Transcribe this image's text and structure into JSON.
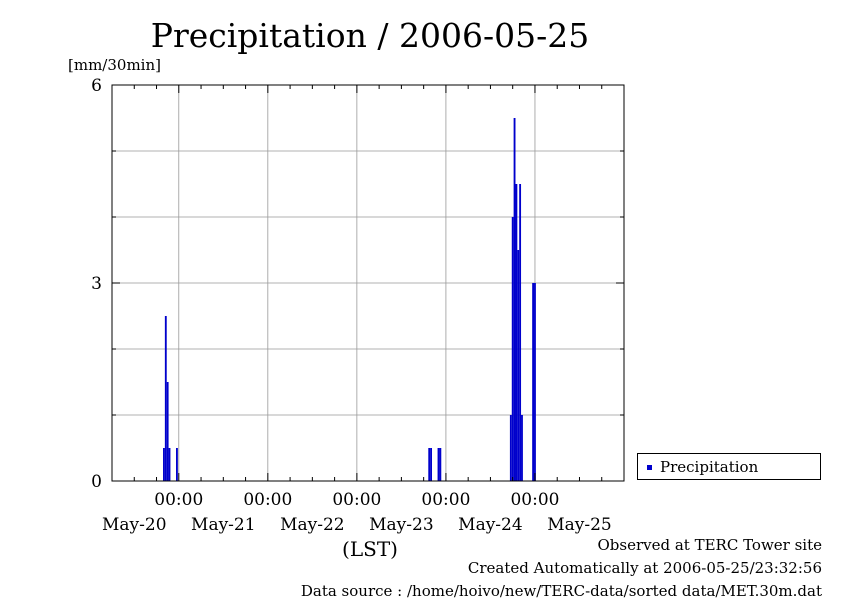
{
  "chart_data": {
    "type": "bar",
    "title": "Precipitation / 2006-05-25",
    "ylabel": "[mm/30min]",
    "xlabel": "(LST)",
    "ylim": [
      0,
      6
    ],
    "y_ticks": [
      0,
      3,
      6
    ],
    "grid": true,
    "legend_position": "bottom-right, outside",
    "x_range": [
      "2006-05-19 06:00",
      "2006-05-25 00:00"
    ],
    "x_time_labels": [
      "00:00",
      "00:00",
      "00:00",
      "00:00",
      "00:00"
    ],
    "x_time_label_at": [
      "2006-05-20 00:00",
      "2006-05-21 00:00",
      "2006-05-22 00:00",
      "2006-05-23 00:00",
      "2006-05-24 00:00"
    ],
    "x_date_labels": [
      "May-20",
      "May-21",
      "May-22",
      "May-23",
      "May-24",
      "May-25"
    ],
    "x_date_label_at": [
      "2006-05-19 12:00",
      "2006-05-20 12:00",
      "2006-05-21 12:00",
      "2006-05-22 12:00",
      "2006-05-23 12:00",
      "2006-05-24 12:00"
    ],
    "series": [
      {
        "name": "Precipitation",
        "color": "#0000cc",
        "points": [
          {
            "x": "2006-05-19 20:00",
            "y": 0.5
          },
          {
            "x": "2006-05-19 20:30",
            "y": 2.5
          },
          {
            "x": "2006-05-19 21:00",
            "y": 1.5
          },
          {
            "x": "2006-05-19 21:30",
            "y": 0.5
          },
          {
            "x": "2006-05-19 23:30",
            "y": 0.5
          },
          {
            "x": "2006-05-22 19:30",
            "y": 0.5
          },
          {
            "x": "2006-05-22 20:00",
            "y": 0.5
          },
          {
            "x": "2006-05-22 22:00",
            "y": 0.5
          },
          {
            "x": "2006-05-22 22:30",
            "y": 0.5
          },
          {
            "x": "2006-05-23 17:30",
            "y": 1.0
          },
          {
            "x": "2006-05-23 18:00",
            "y": 4.0
          },
          {
            "x": "2006-05-23 18:30",
            "y": 5.5
          },
          {
            "x": "2006-05-23 19:00",
            "y": 4.5
          },
          {
            "x": "2006-05-23 19:30",
            "y": 3.5
          },
          {
            "x": "2006-05-23 20:00",
            "y": 4.5
          },
          {
            "x": "2006-05-23 20:30",
            "y": 1.0
          },
          {
            "x": "2006-05-23 23:30",
            "y": 3.0
          },
          {
            "x": "2006-05-24 00:00",
            "y": 3.0
          }
        ]
      }
    ]
  },
  "legend": {
    "label": "Precipitation"
  },
  "footer": {
    "line1": "Observed at TERC Tower site",
    "line2": "Created Automatically at 2006-05-25/23:32:56",
    "line3": "Data source : /home/hoivo/new/TERC-data/sorted  data/MET.30m.dat"
  }
}
